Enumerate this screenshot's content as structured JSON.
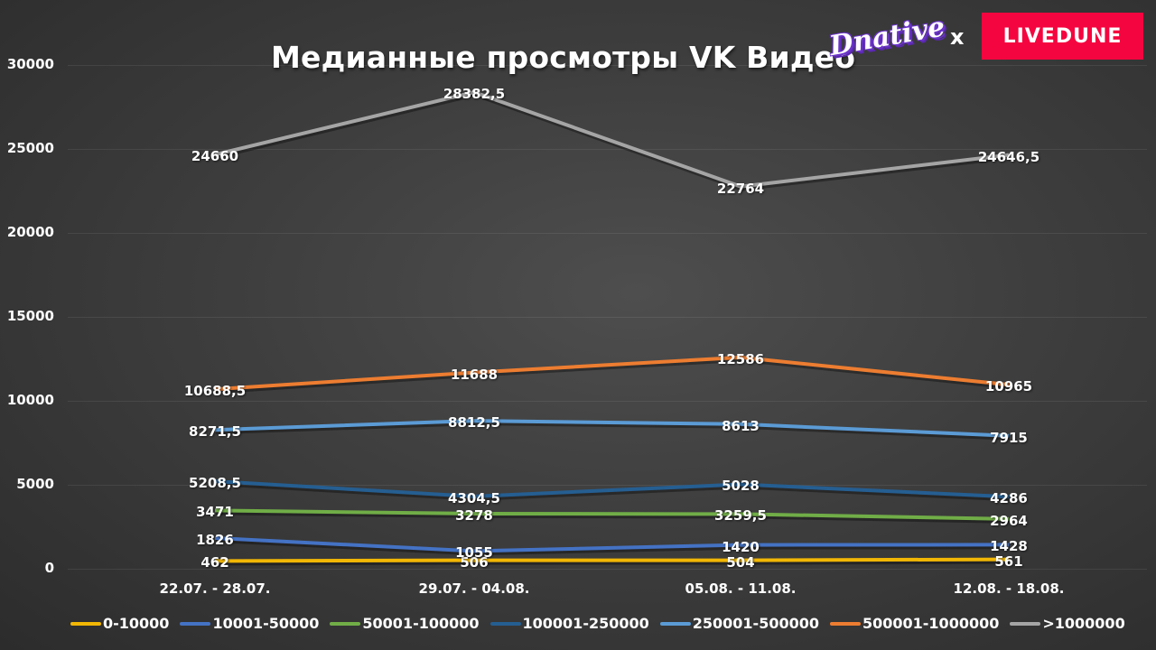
{
  "header": {
    "title": "Медианные просмотры VK Видео",
    "logo_left": "Dnative",
    "separator": "x",
    "logo_right": "LIVEDUNE"
  },
  "colors": {
    "background": "#3c3c3c",
    "livedune": "#f5053f",
    "dnative": "#6b34c9"
  },
  "chart_data": {
    "type": "line",
    "title": "Медианные просмотры VK Видео",
    "xlabel": "",
    "ylabel": "",
    "ylim": [
      0,
      30000
    ],
    "yticks": [
      "0",
      "5000",
      "10000",
      "15000",
      "20000",
      "25000",
      "30000"
    ],
    "grid": true,
    "legend_position": "bottom",
    "categories": [
      "22.07. - 28.07.",
      "29.07. - 04.08.",
      "05.08. - 11.08.",
      "12.08. - 18.08."
    ],
    "series": [
      {
        "name": "0-10000",
        "color": "#f2b705",
        "values": [
          462,
          506,
          504,
          561
        ],
        "labels": [
          "462",
          "506",
          "504",
          "561"
        ]
      },
      {
        "name": "10001-50000",
        "color": "#4472c4",
        "values": [
          1826,
          1055,
          1420,
          1428
        ],
        "labels": [
          "1826",
          "1055",
          "1420",
          "1428"
        ]
      },
      {
        "name": "50001-100000",
        "color": "#70ad47",
        "values": [
          3471,
          3278,
          3259.5,
          2964
        ],
        "labels": [
          "3471",
          "3278",
          "3259,5",
          "2964"
        ]
      },
      {
        "name": "100001-250000",
        "color": "#255e91",
        "values": [
          5208.5,
          4304.5,
          5028,
          4286
        ],
        "labels": [
          "5208,5",
          "4304,5",
          "5028",
          "4286"
        ]
      },
      {
        "name": "250001-500000",
        "color": "#5b9bd5",
        "values": [
          8271.5,
          8812.5,
          8613,
          7915
        ],
        "labels": [
          "8271,5",
          "8812,5",
          "8613",
          "7915"
        ]
      },
      {
        "name": "500001-1000000",
        "color": "#ed7d31",
        "values": [
          10688.5,
          11688,
          12586,
          10965
        ],
        "labels": [
          "10688,5",
          "11688",
          "12586",
          "10965"
        ]
      },
      {
        "name": ">1000000",
        "color": "#a5a5a5",
        "values": [
          24660,
          28382.5,
          22764,
          24646.5
        ],
        "labels": [
          "24660",
          "28382,5",
          "22764",
          "24646,5"
        ]
      }
    ]
  }
}
